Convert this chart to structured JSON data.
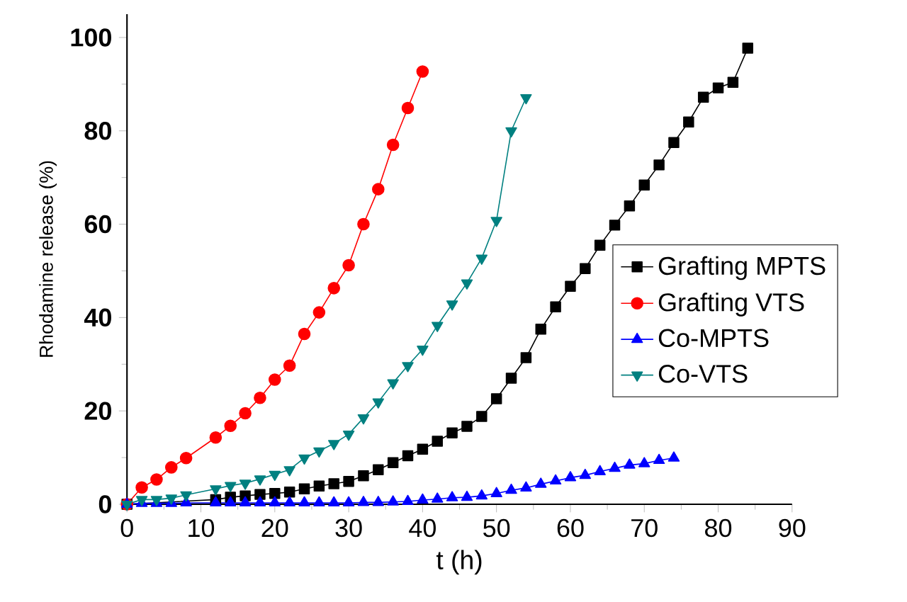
{
  "chart_data": {
    "type": "line",
    "xlabel": "t (h)",
    "ylabel": "Rhodamine release (%)",
    "xlim": [
      0,
      90
    ],
    "ylim": [
      0,
      105
    ],
    "xticks": [
      0,
      10,
      20,
      30,
      40,
      50,
      60,
      70,
      80,
      90
    ],
    "yticks": [
      0,
      20,
      40,
      60,
      80,
      100
    ],
    "grid": false,
    "legend": "right",
    "line_style": "solid",
    "series": [
      {
        "name": "Grafting MPTS",
        "color": "#000000",
        "marker": "square",
        "x": [
          0,
          2,
          4,
          6,
          8,
          12,
          14,
          16,
          18,
          20,
          22,
          24,
          26,
          28,
          30,
          32,
          34,
          36,
          38,
          40,
          42,
          44,
          46,
          48,
          50,
          52,
          54,
          56,
          58,
          60,
          62,
          64,
          66,
          68,
          70,
          72,
          74,
          76,
          78,
          80,
          82,
          84
        ],
        "values": [
          0,
          null,
          null,
          null,
          null,
          1.0,
          1.5,
          1.8,
          2.1,
          2.3,
          2.6,
          3.3,
          3.9,
          4.4,
          4.9,
          6.1,
          7.4,
          8.9,
          10.4,
          11.8,
          13.5,
          15.3,
          16.7,
          18.8,
          22.6,
          27.0,
          31.4,
          37.5,
          42.3,
          46.7,
          50.5,
          55.5,
          59.8,
          63.9,
          68.4,
          72.7,
          77.5,
          81.9,
          87.2,
          89.2,
          90.4,
          97.7
        ]
      },
      {
        "name": "Grafting VTS",
        "color": "#ff0000",
        "marker": "circle",
        "x": [
          0,
          2,
          4,
          6,
          8,
          12,
          14,
          16,
          18,
          20,
          22,
          24,
          26,
          28,
          30,
          32,
          34,
          36,
          38,
          40
        ],
        "values": [
          0,
          3.6,
          5.3,
          7.9,
          9.9,
          14.3,
          16.8,
          19.5,
          22.8,
          26.7,
          29.7,
          36.5,
          41.1,
          46.3,
          51.2,
          60.0,
          67.5,
          77.0,
          84.9,
          92.7
        ]
      },
      {
        "name": "Co-MPTS",
        "color": "#0000ff",
        "marker": "triangle",
        "x": [
          0,
          2,
          4,
          6,
          8,
          12,
          14,
          16,
          18,
          20,
          22,
          24,
          26,
          28,
          30,
          32,
          34,
          36,
          38,
          40,
          42,
          44,
          46,
          48,
          50,
          52,
          54,
          56,
          58,
          60,
          62,
          64,
          66,
          68,
          70,
          72,
          74
        ],
        "values": [
          0,
          0.2,
          0.2,
          0.2,
          0.3,
          0.3,
          0.3,
          0.3,
          0.3,
          0.3,
          0.3,
          0.3,
          0.3,
          0.3,
          0.3,
          0.4,
          0.4,
          0.5,
          0.6,
          0.9,
          1.1,
          1.4,
          1.5,
          1.8,
          2.3,
          3.0,
          3.5,
          4.3,
          5.0,
          5.7,
          6.2,
          7.0,
          7.7,
          8.4,
          8.7,
          9.4,
          9.9
        ]
      },
      {
        "name": "Co-VTS",
        "color": "#008080",
        "marker": "triangle-down",
        "x": [
          0,
          2,
          4,
          6,
          8,
          12,
          14,
          16,
          18,
          20,
          22,
          24,
          26,
          28,
          30,
          32,
          34,
          36,
          38,
          40,
          42,
          44,
          46,
          48,
          50,
          52,
          54
        ],
        "values": [
          0,
          1.0,
          1.0,
          1.3,
          2.0,
          3.3,
          4.0,
          4.5,
          5.4,
          6.4,
          7.4,
          9.9,
          11.4,
          13.0,
          15.0,
          18.5,
          21.9,
          26.0,
          29.7,
          33.2,
          38.3,
          42.9,
          47.4,
          52.7,
          60.8,
          80.0,
          87.1
        ]
      }
    ]
  }
}
